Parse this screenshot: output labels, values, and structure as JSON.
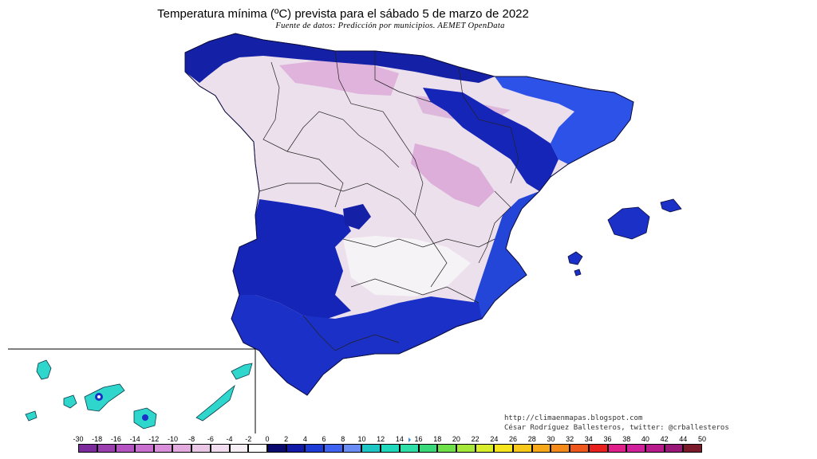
{
  "title": "Temperatura mínima (ºC) prevista para el sábado 5 de marzo de 2022",
  "subtitle": "Fuente de datos: Predicción por municipios. AEMET OpenData",
  "credits": {
    "url": "http://climaenmapas.blogspot.com",
    "author": "César Rodríguez Ballesteros, twitter: @crballesteros"
  },
  "legend": {
    "unit": "ºC",
    "ticks": [
      "-30",
      "-18",
      "-16",
      "-14",
      "-12",
      "-10",
      "-8",
      "-6",
      "-4",
      "-2",
      "0",
      "2",
      "4",
      "6",
      "8",
      "10",
      "12",
      "14",
      "16",
      "18",
      "20",
      "22",
      "24",
      "26",
      "28",
      "30",
      "32",
      "34",
      "36",
      "38",
      "40",
      "42",
      "44",
      "50"
    ],
    "colors": [
      "#7c2a9c",
      "#9b3fb0",
      "#b553c2",
      "#c86fd0",
      "#d98fd9",
      "#e3aadf",
      "#ebc7e7",
      "#f2dcef",
      "#f8eef6",
      "#ffffff",
      "#0a0a6e",
      "#101aa6",
      "#1f3bd6",
      "#3f62f0",
      "#6a8cf5",
      "#1fc6c6",
      "#20d9bd",
      "#2ee0a8",
      "#39d97a",
      "#6ee04a",
      "#a6e83a",
      "#d8ee2a",
      "#f6e51c",
      "#f7c81a",
      "#f6a81a",
      "#f48a1a",
      "#f0571c",
      "#e8201e",
      "#e0208a",
      "#d1209c",
      "#b81a8c",
      "#981777",
      "#7a1a2a"
    ],
    "marker_value": "15"
  },
  "regions": {
    "peninsula": "Península Ibérica (España)",
    "balearic": "Islas Baleares",
    "canary": "Islas Canarias"
  },
  "colors": {
    "cold_interior": "#ece0ec",
    "cold_core": "#d68ed0",
    "near_zero": "#f5f2f6",
    "mild_coast": "#1525b8",
    "warm_coast": "#2d52e8",
    "canary": "#2fd6cc",
    "border": "#111111"
  }
}
